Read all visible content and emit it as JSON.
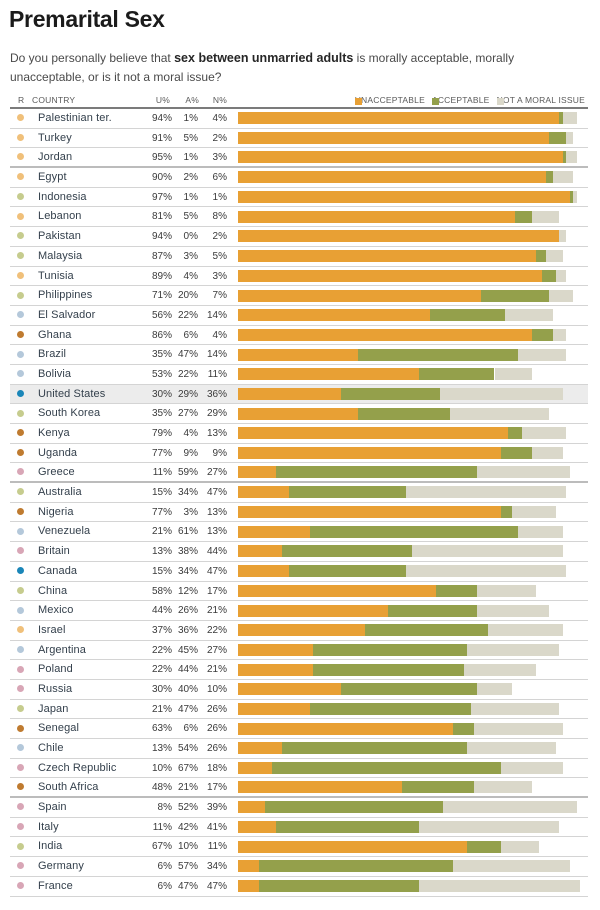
{
  "title": "Premarital Sex",
  "question": {
    "pre": "Do you personally believe that ",
    "bold": "sex between unmarried adults",
    "post": " is morally acceptable, morally unacceptable, or is it not a moral issue?"
  },
  "table_header": {
    "region": "R",
    "country": "COUNTRY",
    "unacceptable_pct": "U%",
    "acceptable_pct": "A%",
    "not_moral_pct": "N%"
  },
  "highlighted_country": "United States",
  "region_dot_colors": {
    "peach": "#F0C07A",
    "sage": "#C6CC8E",
    "light_blue": "#B4C8DA",
    "brown": "#BF7B30",
    "blue": "#1A86B8",
    "pink": "#D8A6B6"
  },
  "chart_data": {
    "type": "bar",
    "orientation": "horizontal",
    "stacked": true,
    "title": "Premarital Sex",
    "xlabel": "",
    "ylabel": "",
    "xlim": [
      0,
      100
    ],
    "grid": false,
    "legend_position": "top-right",
    "value_suffix": "%",
    "categories": [
      "Palestinian ter.",
      "Turkey",
      "Jordan",
      "Egypt",
      "Indonesia",
      "Lebanon",
      "Pakistan",
      "Malaysia",
      "Tunisia",
      "Philippines",
      "El Salvador",
      "Ghana",
      "Brazil",
      "Bolivia",
      "United States",
      "South Korea",
      "Kenya",
      "Uganda",
      "Greece",
      "Australia",
      "Nigeria",
      "Venezuela",
      "Britain",
      "Canada",
      "China",
      "Mexico",
      "Israel",
      "Argentina",
      "Poland",
      "Russia",
      "Japan",
      "Senegal",
      "Chile",
      "Czech Republic",
      "South Africa",
      "Spain",
      "Italy",
      "India",
      "Germany",
      "France"
    ],
    "dot_colors": [
      "peach",
      "peach",
      "peach",
      "peach",
      "sage",
      "peach",
      "sage",
      "sage",
      "peach",
      "sage",
      "light_blue",
      "brown",
      "light_blue",
      "light_blue",
      "blue",
      "sage",
      "brown",
      "brown",
      "pink",
      "sage",
      "brown",
      "light_blue",
      "pink",
      "blue",
      "sage",
      "light_blue",
      "peach",
      "light_blue",
      "pink",
      "pink",
      "sage",
      "brown",
      "light_blue",
      "pink",
      "brown",
      "pink",
      "pink",
      "sage",
      "pink",
      "pink"
    ],
    "section_breaks_after": [
      "Jordan",
      "Greece",
      "South Africa"
    ],
    "series": [
      {
        "name": "UNACCEPTABLE",
        "color": "#E8A034",
        "values": [
          94,
          91,
          95,
          90,
          97,
          81,
          94,
          87,
          89,
          71,
          56,
          86,
          35,
          53,
          30,
          35,
          79,
          77,
          11,
          15,
          77,
          21,
          13,
          15,
          58,
          44,
          37,
          22,
          22,
          30,
          21,
          63,
          13,
          10,
          48,
          8,
          11,
          67,
          6,
          6
        ]
      },
      {
        "name": "ACCEPTABLE",
        "color": "#94A04B",
        "values": [
          1,
          5,
          1,
          2,
          1,
          5,
          0,
          3,
          4,
          20,
          22,
          6,
          47,
          22,
          29,
          27,
          4,
          9,
          59,
          34,
          3,
          61,
          38,
          34,
          12,
          26,
          36,
          45,
          44,
          40,
          47,
          6,
          54,
          67,
          21,
          52,
          42,
          10,
          57,
          47
        ]
      },
      {
        "name": "NOT A MORAL ISSUE",
        "color": "#DAD8CA",
        "values": [
          4,
          2,
          3,
          6,
          1,
          8,
          2,
          5,
          3,
          7,
          14,
          4,
          14,
          11,
          36,
          29,
          13,
          9,
          27,
          47,
          13,
          13,
          44,
          47,
          17,
          21,
          22,
          27,
          21,
          10,
          26,
          26,
          26,
          18,
          17,
          39,
          41,
          11,
          34,
          47
        ]
      }
    ]
  }
}
